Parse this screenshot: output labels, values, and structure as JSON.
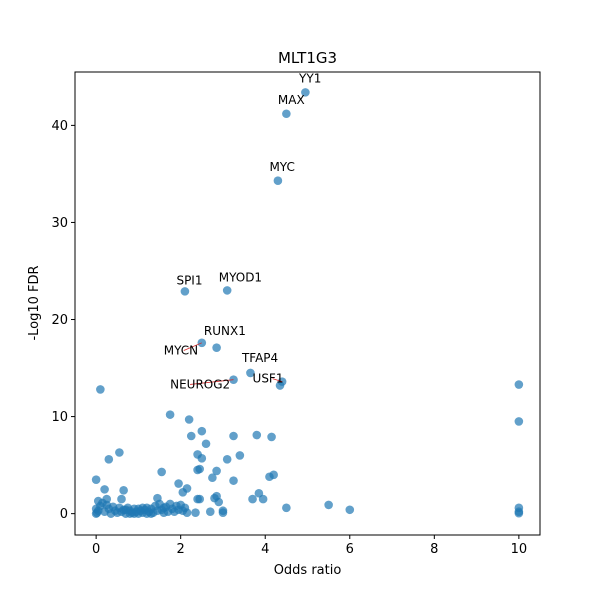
{
  "chart_data": {
    "type": "scatter",
    "title": "MLT1G3",
    "xlabel": "Odds ratio",
    "ylabel": "-Log10 FDR",
    "xlim": [
      -0.5,
      10.5
    ],
    "ylim": [
      -2.2,
      45.5
    ],
    "xticks": [
      0,
      2,
      4,
      6,
      8,
      10
    ],
    "yticks": [
      0,
      10,
      20,
      30,
      40
    ],
    "grid": false,
    "color": "#1f77b4",
    "points": [
      [
        4.95,
        43.4
      ],
      [
        4.5,
        41.2
      ],
      [
        4.3,
        34.3
      ],
      [
        3.1,
        23.0
      ],
      [
        2.1,
        22.9
      ],
      [
        2.5,
        17.6
      ],
      [
        2.85,
        17.1
      ],
      [
        3.65,
        14.5
      ],
      [
        3.25,
        13.8
      ],
      [
        4.4,
        13.6
      ],
      [
        4.35,
        13.2
      ],
      [
        0.1,
        12.8
      ],
      [
        10.0,
        13.3
      ],
      [
        10.0,
        9.5
      ],
      [
        1.75,
        10.2
      ],
      [
        2.2,
        9.7
      ],
      [
        2.5,
        8.5
      ],
      [
        2.25,
        8.0
      ],
      [
        3.25,
        8.0
      ],
      [
        3.8,
        8.1
      ],
      [
        4.15,
        7.9
      ],
      [
        2.6,
        7.2
      ],
      [
        0.55,
        6.3
      ],
      [
        0.3,
        5.6
      ],
      [
        2.4,
        6.1
      ],
      [
        3.4,
        6.0
      ],
      [
        3.1,
        5.6
      ],
      [
        2.5,
        5.7
      ],
      [
        2.45,
        4.6
      ],
      [
        2.4,
        4.5
      ],
      [
        2.85,
        4.4
      ],
      [
        1.55,
        4.3
      ],
      [
        4.2,
        4.0
      ],
      [
        4.1,
        3.8
      ],
      [
        2.75,
        3.7
      ],
      [
        3.25,
        3.4
      ],
      [
        0.0,
        3.5
      ],
      [
        1.95,
        3.1
      ],
      [
        2.15,
        2.6
      ],
      [
        2.05,
        2.2
      ],
      [
        0.2,
        2.5
      ],
      [
        0.65,
        2.4
      ],
      [
        3.85,
        2.1
      ],
      [
        1.45,
        1.6
      ],
      [
        2.85,
        1.8
      ],
      [
        2.8,
        1.6
      ],
      [
        3.7,
        1.5
      ],
      [
        3.95,
        1.5
      ],
      [
        2.45,
        1.5
      ],
      [
        2.4,
        1.5
      ],
      [
        2.9,
        1.2
      ],
      [
        0.05,
        1.3
      ],
      [
        0.25,
        1.5
      ],
      [
        0.6,
        1.5
      ],
      [
        5.5,
        0.9
      ],
      [
        4.5,
        0.6
      ],
      [
        6.0,
        0.4
      ],
      [
        2.7,
        0.2
      ],
      [
        3.0,
        0.3
      ],
      [
        3.0,
        0.1
      ],
      [
        2.35,
        0.1
      ],
      [
        10.0,
        0.6
      ],
      [
        10.0,
        0.2
      ],
      [
        10.0,
        0.05
      ],
      [
        0.0,
        0.0
      ],
      [
        0.02,
        0.1
      ],
      [
        0.05,
        0.3
      ],
      [
        0.0,
        0.5
      ],
      [
        0.1,
        0.8
      ],
      [
        0.15,
        1.1
      ],
      [
        0.2,
        0.2
      ],
      [
        0.25,
        0.9
      ],
      [
        0.3,
        0.5
      ],
      [
        0.35,
        0.0
      ],
      [
        0.4,
        0.7
      ],
      [
        0.45,
        0.3
      ],
      [
        0.5,
        0.1
      ],
      [
        0.55,
        0.6
      ],
      [
        0.6,
        0.2
      ],
      [
        0.65,
        0.4
      ],
      [
        0.7,
        0.0
      ],
      [
        0.75,
        0.6
      ],
      [
        0.8,
        0.3
      ],
      [
        0.85,
        0.1
      ],
      [
        0.9,
        0.5
      ],
      [
        0.95,
        0.2
      ],
      [
        1.0,
        0.0
      ],
      [
        1.05,
        0.3
      ],
      [
        1.1,
        0.1
      ],
      [
        1.15,
        0.4
      ],
      [
        1.2,
        0.0
      ],
      [
        1.25,
        0.2
      ],
      [
        1.3,
        0.5
      ],
      [
        1.35,
        0.1
      ],
      [
        1.4,
        0.8
      ],
      [
        1.45,
        0.3
      ],
      [
        1.5,
        1.0
      ],
      [
        1.55,
        0.4
      ],
      [
        1.6,
        0.1
      ],
      [
        1.65,
        0.7
      ],
      [
        1.7,
        0.2
      ],
      [
        1.75,
        1.0
      ],
      [
        1.8,
        0.5
      ],
      [
        1.85,
        0.2
      ],
      [
        1.9,
        0.8
      ],
      [
        1.95,
        0.4
      ],
      [
        2.0,
        0.9
      ],
      [
        2.05,
        0.3
      ],
      [
        2.1,
        0.6
      ],
      [
        2.15,
        0.1
      ],
      [
        1.0,
        0.5
      ],
      [
        0.8,
        0.0
      ],
      [
        1.3,
        0.0
      ],
      [
        1.6,
        0.6
      ],
      [
        1.2,
        0.6
      ],
      [
        0.9,
        0.0
      ],
      [
        1.1,
        0.6
      ],
      [
        0.7,
        0.4
      ]
    ],
    "annotations": [
      {
        "text": "YY1",
        "x": 4.95,
        "y": 43.4,
        "tx": 4.8,
        "ty": 44.4
      },
      {
        "text": "MAX",
        "x": 4.5,
        "y": 41.2,
        "tx": 4.3,
        "ty": 42.2
      },
      {
        "text": "MYC",
        "x": 4.3,
        "y": 34.3,
        "tx": 4.1,
        "ty": 35.3
      },
      {
        "text": "MYOD1",
        "x": 3.1,
        "y": 23.0,
        "tx": 2.9,
        "ty": 23.9
      },
      {
        "text": "SPI1",
        "x": 2.1,
        "y": 22.9,
        "tx": 1.9,
        "ty": 23.6
      },
      {
        "text": "RUNX1",
        "x": 2.85,
        "y": 17.1,
        "tx": 2.55,
        "ty": 18.4
      },
      {
        "text": "MYCN",
        "x": 2.5,
        "y": 17.6,
        "tx": 1.6,
        "ty": 16.4
      },
      {
        "text": "TFAP4",
        "x": 3.65,
        "y": 14.5,
        "tx": 3.45,
        "ty": 15.6
      },
      {
        "text": "NEUROG2",
        "x": 3.25,
        "y": 13.8,
        "tx": 1.75,
        "ty": 12.9
      },
      {
        "text": "USF1",
        "x": 4.4,
        "y": 13.6,
        "tx": 3.7,
        "ty": 13.5
      }
    ]
  }
}
